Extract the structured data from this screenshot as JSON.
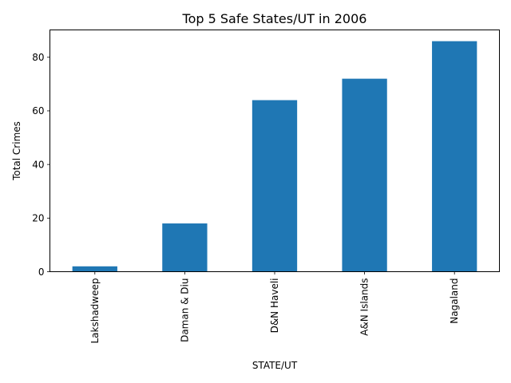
{
  "chart_data": {
    "type": "bar",
    "title": "Top 5 Safe States/UT in 2006",
    "xlabel": "STATE/UT",
    "ylabel": "Total Crimes",
    "categories": [
      "Lakshadweep",
      "Daman & Diu",
      "D&N Haveli",
      "A&N Islands",
      "Nagaland"
    ],
    "values": [
      2,
      18,
      64,
      72,
      86
    ],
    "yticks": [
      0,
      20,
      40,
      60,
      80
    ],
    "ylim": [
      0,
      90.2
    ],
    "bar_color": "#1f77b4",
    "grid": false,
    "legend": "none"
  }
}
